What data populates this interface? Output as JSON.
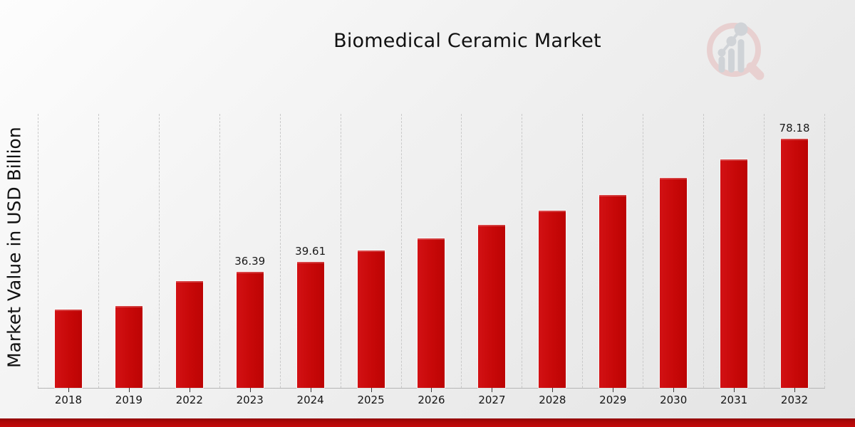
{
  "title": "Biomedical Ceramic Market",
  "ylabel": "Market Value in USD Billion",
  "colors": {
    "bar": "#c70808",
    "accent_strip": "#c40909",
    "grid": "#c9c9c9",
    "axis": "#b5b5b5",
    "text": "#111111",
    "logo_ring": "#e8caca",
    "logo_gray": "#c9cdd2"
  },
  "icons": {
    "logo": "magnifier-bar-chart-logo"
  },
  "chart_data": {
    "type": "bar",
    "title": "Biomedical Ceramic Market",
    "xlabel": "",
    "ylabel": "Market Value in USD Billion",
    "categories": [
      "2018",
      "2019",
      "2022",
      "2023",
      "2024",
      "2025",
      "2026",
      "2027",
      "2028",
      "2029",
      "2030",
      "2031",
      "2032"
    ],
    "values": [
      24.5,
      25.8,
      33.4,
      36.39,
      39.61,
      43.13,
      46.95,
      51.12,
      55.65,
      60.59,
      65.96,
      71.81,
      78.18
    ],
    "bar_labels": [
      "",
      "",
      "",
      "36.39",
      "39.61",
      "",
      "",
      "",
      "",
      "",
      "",
      "",
      "78.18"
    ],
    "ylim": [
      0,
      86
    ],
    "grid": "vertical-dashed",
    "legend": "none",
    "bar_color": "#c70808"
  }
}
